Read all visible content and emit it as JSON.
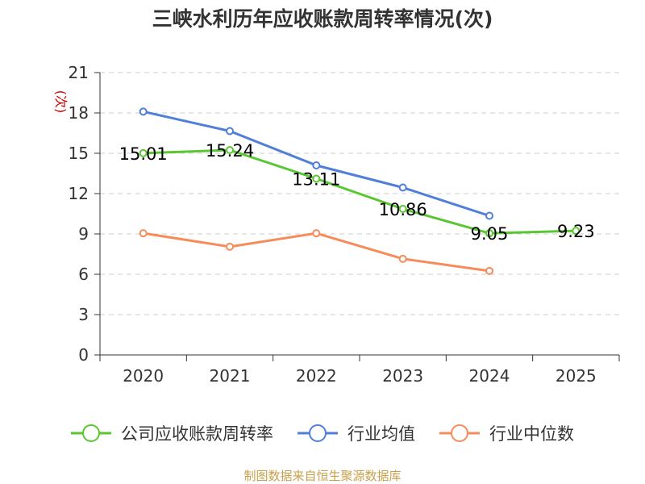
{
  "chart_data": {
    "type": "line",
    "title": "三峡水利历年应收账款周转率情况(次)",
    "ylabel": "(次)",
    "categories": [
      "2020",
      "2021",
      "2022",
      "2023",
      "2024",
      "2025"
    ],
    "ylim": [
      0,
      21
    ],
    "yticks": [
      0,
      3,
      6,
      9,
      12,
      15,
      18,
      21
    ],
    "grid": true,
    "legend_position": "bottom",
    "series": [
      {
        "name": "公司应收账款周转率",
        "color": "#5ac732",
        "values": [
          15.01,
          15.24,
          13.11,
          10.86,
          9.05,
          9.23
        ],
        "labels": [
          "15.01",
          "15.24",
          "13.11",
          "10.86",
          "9.05",
          "9.23"
        ]
      },
      {
        "name": "行业均值",
        "color": "#4f7fd8",
        "values": [
          18.1,
          16.65,
          14.1,
          12.45,
          10.35,
          null
        ]
      },
      {
        "name": "行业中位数",
        "color": "#f58c5a",
        "values": [
          9.05,
          8.05,
          9.05,
          7.15,
          6.25,
          null
        ]
      }
    ]
  },
  "source": "制图数据来自恒生聚源数据库"
}
